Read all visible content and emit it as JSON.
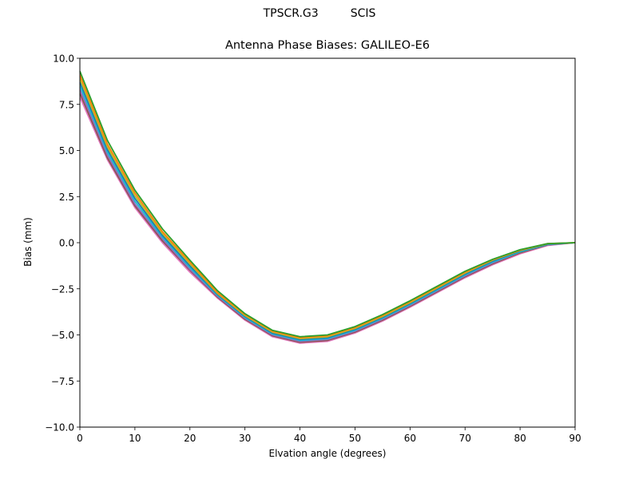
{
  "figure": {
    "suptitle_left": "TPSCR.G3",
    "suptitle_right": "SCIS",
    "title": "Antenna Phase Biases: GALILEO-E6"
  },
  "chart_data": {
    "type": "line",
    "title": "Antenna Phase Biases: GALILEO-E6",
    "suptitle": "TPSCR.G3         SCIS",
    "xlabel": "Elvation angle (degrees)",
    "ylabel": "Bias (mm)",
    "xlim": [
      0,
      90
    ],
    "ylim": [
      -10,
      10
    ],
    "xticks": [
      0,
      10,
      20,
      30,
      40,
      50,
      60,
      70,
      80,
      90
    ],
    "yticks": [
      -10.0,
      -7.5,
      -5.0,
      -2.5,
      0.0,
      2.5,
      5.0,
      7.5,
      10.0
    ],
    "ytick_labels": [
      "−10.0",
      "−7.5",
      "−5.0",
      "−2.5",
      "0.0",
      "2.5",
      "5.0",
      "7.5",
      "10.0"
    ],
    "grid": false,
    "legend": "none",
    "x": [
      0,
      5,
      10,
      15,
      20,
      25,
      30,
      35,
      40,
      45,
      50,
      55,
      60,
      65,
      70,
      75,
      80,
      85,
      90
    ],
    "series": [
      {
        "name": "s1",
        "color": "#e377c2",
        "values": [
          7.9,
          4.5,
          1.9,
          0.0,
          -1.6,
          -3.0,
          -4.2,
          -5.1,
          -5.45,
          -5.35,
          -4.9,
          -4.25,
          -3.5,
          -2.7,
          -1.9,
          -1.2,
          -0.6,
          -0.15,
          0.0
        ]
      },
      {
        "name": "s2",
        "color": "#8c564b",
        "values": [
          8.1,
          4.6,
          2.0,
          0.1,
          -1.5,
          -2.95,
          -4.15,
          -5.05,
          -5.4,
          -5.3,
          -4.85,
          -4.2,
          -3.45,
          -2.65,
          -1.85,
          -1.15,
          -0.55,
          -0.12,
          0.0
        ]
      },
      {
        "name": "s3",
        "color": "#9467bd",
        "values": [
          8.3,
          4.75,
          2.1,
          0.2,
          -1.45,
          -2.9,
          -4.1,
          -5.0,
          -5.35,
          -5.25,
          -4.8,
          -4.15,
          -3.4,
          -2.6,
          -1.8,
          -1.1,
          -0.5,
          -0.1,
          0.0
        ]
      },
      {
        "name": "s4",
        "color": "#17becf",
        "values": [
          8.5,
          4.9,
          2.25,
          0.3,
          -1.35,
          -2.85,
          -4.05,
          -4.95,
          -5.3,
          -5.2,
          -4.75,
          -4.1,
          -3.35,
          -2.55,
          -1.75,
          -1.05,
          -0.5,
          -0.1,
          0.0
        ]
      },
      {
        "name": "s5",
        "color": "#1f77b4",
        "values": [
          8.7,
          5.05,
          2.4,
          0.4,
          -1.25,
          -2.8,
          -4.0,
          -4.9,
          -5.25,
          -5.15,
          -4.7,
          -4.05,
          -3.3,
          -2.5,
          -1.7,
          -1.0,
          -0.45,
          -0.08,
          0.0
        ]
      },
      {
        "name": "s6",
        "color": "#bcbd22",
        "values": [
          8.9,
          5.2,
          2.55,
          0.5,
          -1.15,
          -2.75,
          -3.95,
          -4.85,
          -5.2,
          -5.1,
          -4.65,
          -4.0,
          -3.25,
          -2.45,
          -1.65,
          -0.95,
          -0.42,
          -0.06,
          0.0
        ]
      },
      {
        "name": "s7",
        "color": "#ff7f0e",
        "values": [
          9.1,
          5.35,
          2.7,
          0.6,
          -1.05,
          -2.7,
          -3.9,
          -4.8,
          -5.15,
          -5.05,
          -4.6,
          -3.95,
          -3.2,
          -2.4,
          -1.6,
          -0.92,
          -0.4,
          -0.05,
          0.0
        ]
      },
      {
        "name": "s8",
        "color": "#2ca02c",
        "values": [
          9.3,
          5.55,
          2.85,
          0.75,
          -0.95,
          -2.6,
          -3.85,
          -4.75,
          -5.1,
          -5.0,
          -4.55,
          -3.9,
          -3.15,
          -2.35,
          -1.55,
          -0.9,
          -0.38,
          -0.05,
          0.0
        ]
      }
    ]
  }
}
